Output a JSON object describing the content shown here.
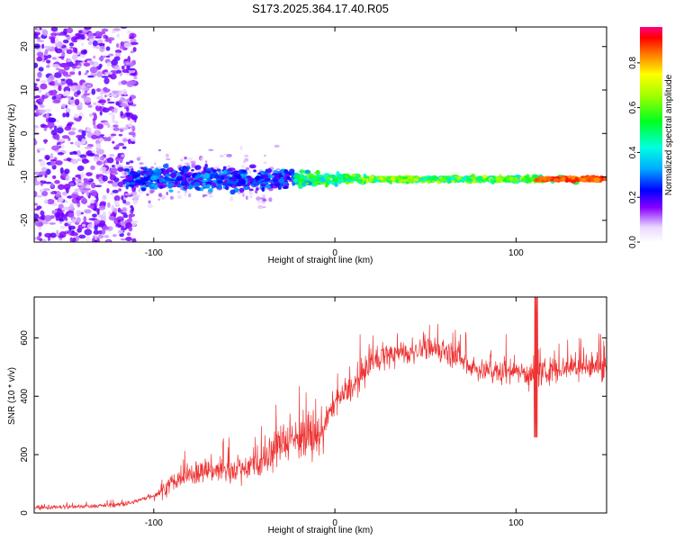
{
  "title": "S173.2025.364.17.40.R05",
  "chart_data": [
    {
      "type": "heatmap",
      "xlabel": "Height of straight line (km)",
      "ylabel": "Frequency (Hz)",
      "xlim": [
        -166,
        150
      ],
      "ylim": [
        -25,
        24.5
      ],
      "x_ticks": [
        -100,
        0,
        100
      ],
      "y_ticks": [
        -20,
        -10,
        0,
        10,
        20
      ],
      "dominant_frequency_hz": -10.5,
      "colorbar": {
        "label": "Normalized spectral amplitude",
        "range": [
          0.0,
          0.96
        ],
        "ticks": [
          0.0,
          0.2,
          0.4,
          0.6,
          0.8
        ]
      }
    },
    {
      "type": "line",
      "xlabel": "Height of straight line (km)",
      "ylabel": "SNR (10 * v/v)",
      "xlim": [
        -166,
        150
      ],
      "ylim": [
        0,
        740
      ],
      "x_ticks": [
        -100,
        0,
        100
      ],
      "y_ticks": [
        0,
        200,
        400,
        600
      ],
      "color": "#ee3333",
      "series": [
        {
          "name": "SNR",
          "x": [
            -166,
            -150,
            -130,
            -115,
            -100,
            -90,
            -80,
            -70,
            -60,
            -50,
            -40,
            -30,
            -20,
            -10,
            0,
            10,
            20,
            30,
            40,
            50,
            60,
            70,
            80,
            90,
            100,
            110,
            120,
            130,
            140,
            150
          ],
          "y": [
            20,
            20,
            25,
            30,
            60,
            100,
            130,
            150,
            140,
            160,
            170,
            240,
            260,
            250,
            380,
            430,
            520,
            540,
            550,
            560,
            560,
            520,
            490,
            480,
            490,
            470,
            490,
            500,
            500,
            500
          ]
        }
      ]
    }
  ]
}
